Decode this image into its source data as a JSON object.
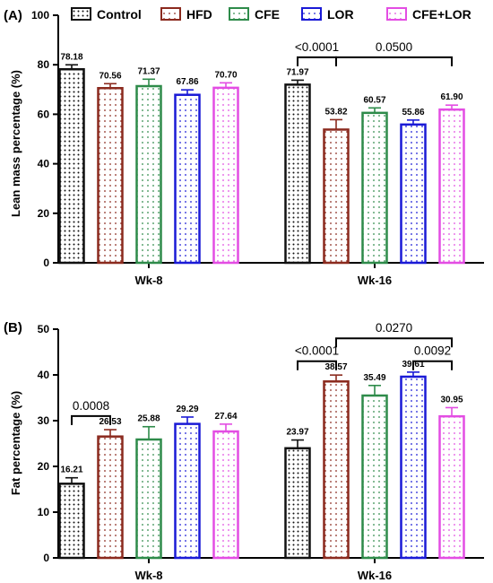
{
  "legend": [
    {
      "label": "Control",
      "color": "#111111",
      "pattern": "dots-dense"
    },
    {
      "label": "HFD",
      "color": "#8b2a1e",
      "pattern": "dots-sparse"
    },
    {
      "label": "CFE",
      "color": "#2e8b4a",
      "pattern": "dots-sparse"
    },
    {
      "label": "LOR",
      "color": "#1a1ad6",
      "pattern": "dots-sparse"
    },
    {
      "label": "CFE+LOR",
      "color": "#e34de3",
      "pattern": "dots-sparse"
    }
  ],
  "chart_data": [
    {
      "panel": "(A)",
      "type": "bar",
      "ylabel": "Lean mass percentage (%)",
      "ylim": [
        0,
        100
      ],
      "yticks": [
        0,
        20,
        40,
        60,
        80,
        100
      ],
      "categories": [
        "Wk-8",
        "Wk-16"
      ],
      "series": [
        {
          "name": "Control",
          "values": [
            78.18,
            71.97
          ],
          "labels": [
            "78.18",
            "71.97"
          ],
          "errors": [
            1.8,
            1.8
          ]
        },
        {
          "name": "HFD",
          "values": [
            70.56,
            53.82
          ],
          "labels": [
            "70.56",
            "53.82"
          ],
          "errors": [
            1.8,
            4.0
          ]
        },
        {
          "name": "CFE",
          "values": [
            71.37,
            60.57
          ],
          "labels": [
            "71.37",
            "60.57"
          ],
          "errors": [
            2.8,
            2.0
          ]
        },
        {
          "name": "LOR",
          "values": [
            67.86,
            55.86
          ],
          "labels": [
            "67.86",
            "55.86"
          ],
          "errors": [
            2.0,
            1.8
          ]
        },
        {
          "name": "CFE+LOR",
          "values": [
            70.7,
            61.9
          ],
          "labels": [
            "70.70",
            "61.90"
          ],
          "errors": [
            2.0,
            1.8
          ]
        }
      ],
      "annotations": [
        {
          "text": "<0.0001",
          "group": 1,
          "from": 0,
          "to": 1,
          "y": 83
        },
        {
          "text": "0.0500",
          "group": 1,
          "from": 1,
          "to": 4,
          "y": 83
        }
      ]
    },
    {
      "panel": "(B)",
      "type": "bar",
      "ylabel": "Fat percentage (%)",
      "ylim": [
        0,
        50
      ],
      "yticks": [
        0,
        10,
        20,
        30,
        40,
        50
      ],
      "categories": [
        "Wk-8",
        "Wk-16"
      ],
      "series": [
        {
          "name": "Control",
          "values": [
            16.21,
            23.97
          ],
          "labels": [
            "16.21",
            "23.97"
          ],
          "errors": [
            1.3,
            1.8
          ]
        },
        {
          "name": "HFD",
          "values": [
            26.53,
            38.57
          ],
          "labels": [
            "26.53",
            "38.57"
          ],
          "errors": [
            1.5,
            1.4
          ]
        },
        {
          "name": "CFE",
          "values": [
            25.88,
            35.49
          ],
          "labels": [
            "25.88",
            "35.49"
          ],
          "errors": [
            2.8,
            2.2
          ]
        },
        {
          "name": "LOR",
          "values": [
            29.29,
            39.61
          ],
          "labels": [
            "29.29",
            "39.61"
          ],
          "errors": [
            1.5,
            1.0
          ]
        },
        {
          "name": "CFE+LOR",
          "values": [
            27.64,
            30.95
          ],
          "labels": [
            "27.64",
            "30.95"
          ],
          "errors": [
            1.6,
            1.9
          ]
        }
      ],
      "annotations": [
        {
          "text": "0.0008",
          "group": 0,
          "from": 0,
          "to": 1,
          "y": 31
        },
        {
          "text": "<0.0001",
          "group": 1,
          "from": 0,
          "to": 1,
          "y": 43
        },
        {
          "text": "0.0092",
          "group": 1,
          "from": 3,
          "to": 4,
          "y": 43
        },
        {
          "text": "0.0270",
          "group": 1,
          "from": 1,
          "to": 4,
          "y": 48
        }
      ]
    }
  ]
}
